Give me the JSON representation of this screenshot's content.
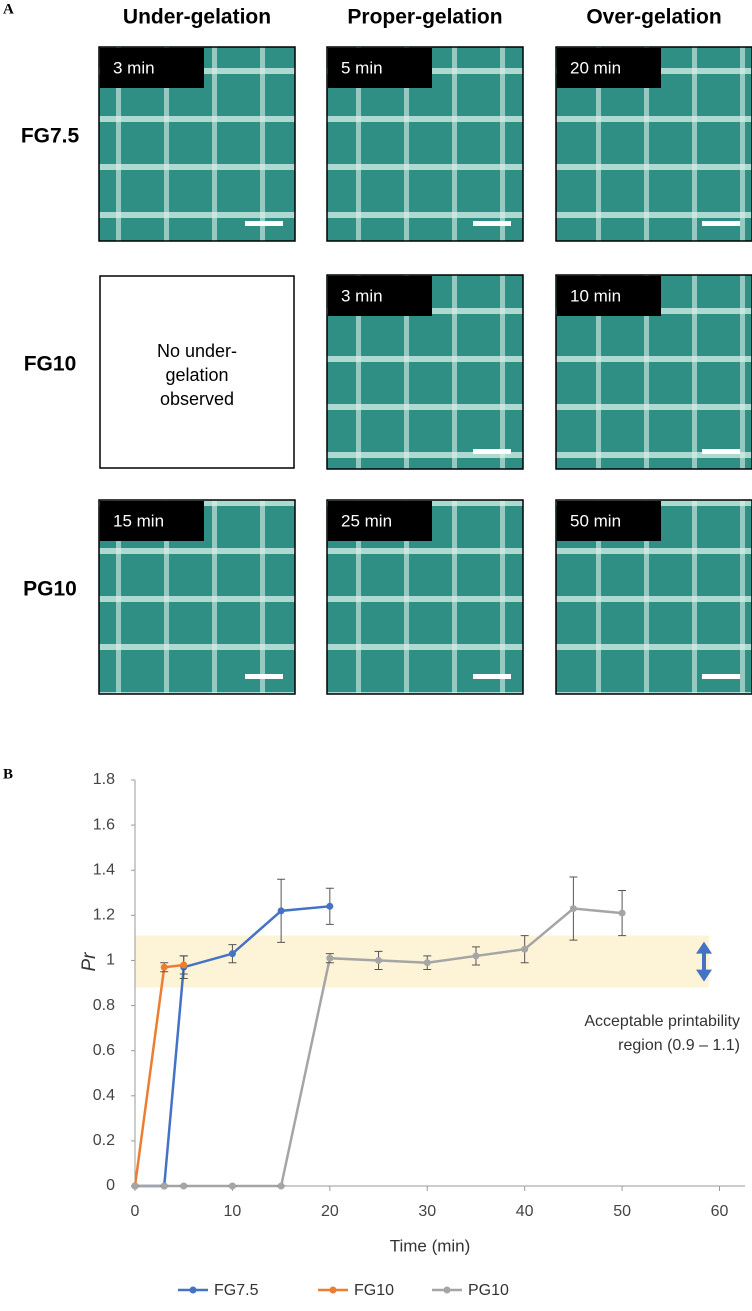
{
  "panel_a": {
    "label": "A",
    "columns": [
      "Under-gelation",
      "Proper-gelation",
      "Over-gelation"
    ],
    "rows": [
      {
        "label": "FG7.5",
        "times": [
          "3 min",
          "5 min",
          "20 min"
        ]
      },
      {
        "label": "FG10",
        "times": [
          null,
          "3 min",
          "10 min"
        ]
      },
      {
        "label": "PG10",
        "times": [
          "15 min",
          "25 min",
          "50 min"
        ]
      }
    ],
    "empty_note": [
      "No under-",
      "gelation",
      "observed"
    ]
  },
  "panel_b_label": "B",
  "chart_data": {
    "type": "line",
    "x_label": "Time (min)",
    "y_label": "Pr",
    "xlim": [
      0,
      62
    ],
    "xticks": [
      0,
      10,
      20,
      30,
      40,
      50,
      60
    ],
    "ylim": [
      0,
      1.8
    ],
    "yticks": [
      0,
      0.2,
      0.4,
      0.6,
      0.8,
      1,
      1.2,
      1.4,
      1.6,
      1.8
    ],
    "band": [
      0.88,
      1.11
    ],
    "band_color": "#fdf3d6",
    "annotation": [
      "Acceptable printability",
      "region (0.9 – 1.1)"
    ],
    "legend": "bottom",
    "series": [
      {
        "name": "FG7.5",
        "color": "#4472c4",
        "x": [
          0,
          3,
          5,
          10,
          15,
          20
        ],
        "values": [
          0,
          0,
          0.97,
          1.03,
          1.22,
          1.24
        ],
        "errors": [
          0,
          0,
          0.05,
          0.04,
          0.14,
          0.08
        ]
      },
      {
        "name": "FG10",
        "color": "#ed7d31",
        "x": [
          0,
          3,
          5
        ],
        "values": [
          0,
          0.97,
          0.98
        ],
        "errors": [
          0,
          0.02,
          0.04
        ]
      },
      {
        "name": "PG10",
        "color": "#a5a5a5",
        "x": [
          0,
          3,
          5,
          10,
          15,
          20,
          25,
          30,
          35,
          40,
          45,
          50
        ],
        "values": [
          0,
          0,
          0,
          0,
          0,
          1.01,
          1.0,
          0.99,
          1.02,
          1.05,
          1.23,
          1.21
        ],
        "errors": [
          0,
          0,
          0,
          0,
          0,
          0.02,
          0.04,
          0.03,
          0.04,
          0.06,
          0.14,
          0.1
        ]
      }
    ]
  }
}
